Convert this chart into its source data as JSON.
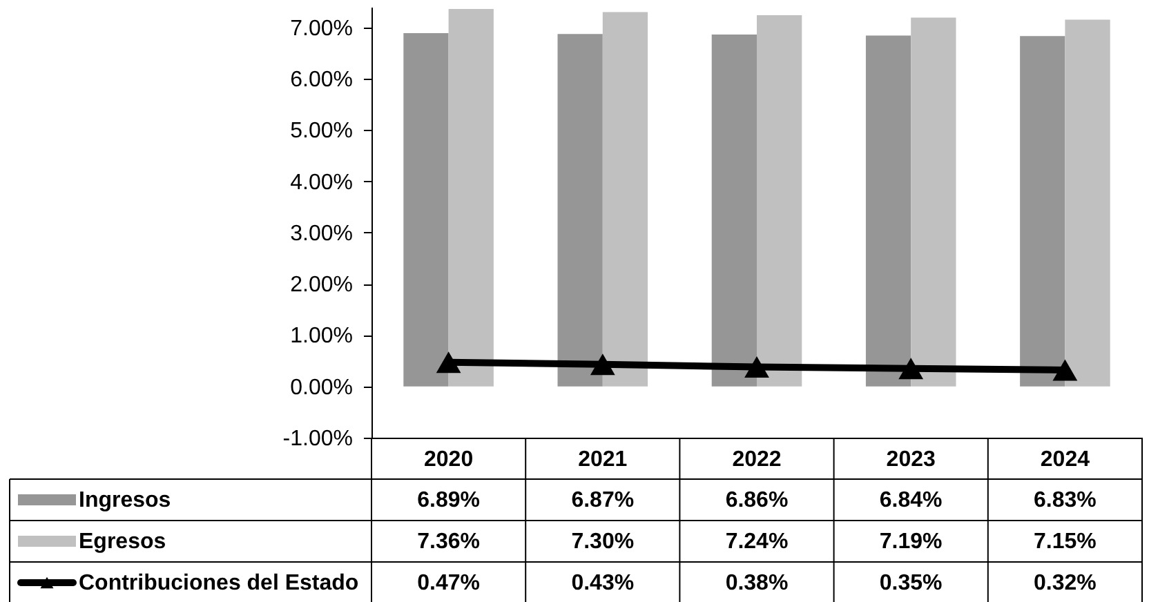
{
  "chart_data": {
    "type": "bar",
    "categories": [
      "2020",
      "2021",
      "2022",
      "2023",
      "2024"
    ],
    "series": [
      {
        "name": "Ingresos",
        "color": "#969696",
        "values": [
          6.89,
          6.87,
          6.86,
          6.84,
          6.83
        ],
        "value_labels": [
          "6.89%",
          "6.87%",
          "6.86%",
          "6.84%",
          "6.83%"
        ]
      },
      {
        "name": "Egresos",
        "color": "#c0c0c0",
        "values": [
          7.36,
          7.3,
          7.24,
          7.19,
          7.15
        ],
        "value_labels": [
          "7.36%",
          "7.30%",
          "7.24%",
          "7.19%",
          "7.15%"
        ]
      },
      {
        "name": "Contribuciones del Estado",
        "type": "line",
        "color": "#000000",
        "values": [
          0.47,
          0.43,
          0.38,
          0.35,
          0.32
        ],
        "value_labels": [
          "0.47%",
          "0.43%",
          "0.38%",
          "0.35%",
          "0.32%"
        ]
      }
    ],
    "ylim": [
      -1,
      7.4
    ],
    "yticks": [
      {
        "value": -1,
        "label": "-1.00%"
      },
      {
        "value": 0,
        "label": "0.00%"
      },
      {
        "value": 1,
        "label": "1.00%"
      },
      {
        "value": 2,
        "label": "2.00%"
      },
      {
        "value": 3,
        "label": "3.00%"
      },
      {
        "value": 4,
        "label": "4.00%"
      },
      {
        "value": 5,
        "label": "5.00%"
      },
      {
        "value": 6,
        "label": "6.00%"
      },
      {
        "value": 7,
        "label": "7.00%"
      }
    ],
    "grid": false,
    "legend": "bottom left",
    "marker": "triangle",
    "line_style": "solid"
  }
}
